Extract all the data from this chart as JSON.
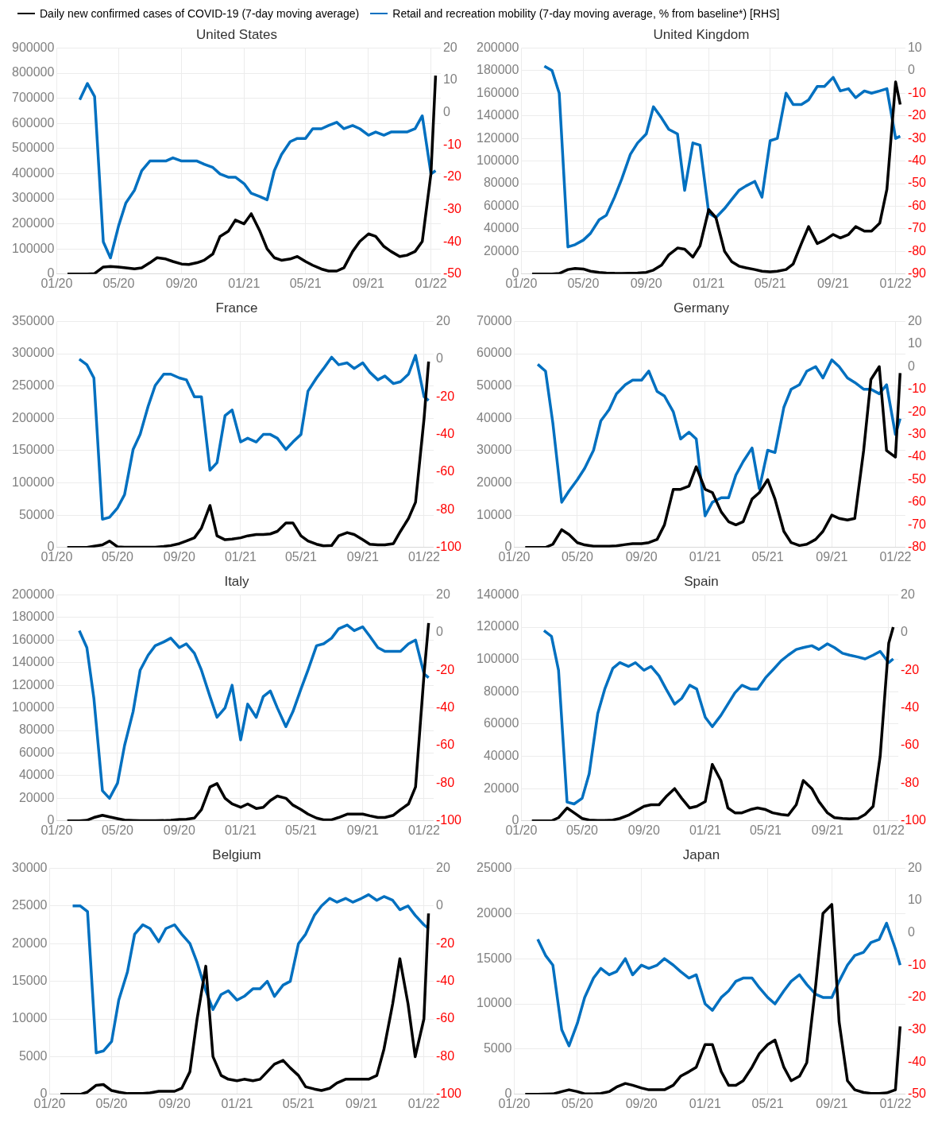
{
  "chart_data": [
    {
      "type": "line",
      "title": "United States",
      "legend": "top",
      "grid": true,
      "marker": "none",
      "x": [
        "2020-01-22",
        "2020-02-15",
        "2020-03-01",
        "2020-03-15",
        "2020-04-01",
        "2020-04-15",
        "2020-05-01",
        "2020-05-15",
        "2020-06-01",
        "2020-06-15",
        "2020-07-01",
        "2020-07-15",
        "2020-08-01",
        "2020-08-15",
        "2020-09-01",
        "2020-09-15",
        "2020-10-01",
        "2020-10-15",
        "2020-11-01",
        "2020-11-15",
        "2020-12-01",
        "2020-12-15",
        "2021-01-01",
        "2021-01-15",
        "2021-02-01",
        "2021-02-15",
        "2021-03-01",
        "2021-03-15",
        "2021-04-01",
        "2021-04-15",
        "2021-05-01",
        "2021-05-15",
        "2021-06-01",
        "2021-06-15",
        "2021-07-01",
        "2021-07-15",
        "2021-08-01",
        "2021-08-15",
        "2021-09-01",
        "2021-09-15",
        "2021-10-01",
        "2021-10-15",
        "2021-11-01",
        "2021-11-15",
        "2021-12-01",
        "2021-12-15",
        "2022-01-01",
        "2022-01-10"
      ],
      "xlim": [
        "2020-01-01",
        "2022-01-20"
      ],
      "xticks": [
        {
          "value": "2020-01",
          "label": "01/20"
        },
        {
          "value": "2020-05",
          "label": "05/20"
        },
        {
          "value": "2020-09",
          "label": "09/20"
        },
        {
          "value": "2021-01",
          "label": "01/21"
        },
        {
          "value": "2021-05",
          "label": "05/21"
        },
        {
          "value": "2021-09",
          "label": "09/21"
        },
        {
          "value": "2022-01",
          "label": "01/22"
        }
      ],
      "ylim": [
        0,
        900000
      ],
      "yticks": [
        0,
        100000,
        200000,
        300000,
        400000,
        500000,
        600000,
        700000,
        800000,
        900000
      ],
      "y2lim": [
        -50,
        20
      ],
      "y2ticks": [
        -50,
        -40,
        -30,
        -20,
        -10,
        0,
        10,
        20
      ],
      "series": [
        {
          "name": "Daily new confirmed cases of COVID-19 (7-day moving average)",
          "color": "#000000",
          "values": [
            0,
            0,
            0,
            2000,
            28000,
            30000,
            28000,
            25000,
            21000,
            25000,
            45000,
            65000,
            60000,
            50000,
            40000,
            38000,
            45000,
            55000,
            80000,
            150000,
            170000,
            215000,
            200000,
            240000,
            170000,
            100000,
            65000,
            55000,
            60000,
            70000,
            50000,
            35000,
            20000,
            12000,
            12000,
            25000,
            90000,
            130000,
            160000,
            150000,
            110000,
            90000,
            70000,
            75000,
            90000,
            130000,
            400000,
            790000
          ]
        },
        {
          "name": "Retail and recreation mobility (7-day moving average, % from baseline*) [RHS]",
          "color": "#0070c0",
          "axis": "y2",
          "values": [
            null,
            4,
            9,
            5,
            -40,
            -45,
            -35,
            -28,
            -24,
            -18,
            -15,
            -15,
            -15,
            -14,
            -15,
            -15,
            -15,
            -16,
            -17,
            -19,
            -20,
            -20,
            -22,
            -25,
            -26,
            -27,
            -18,
            -13,
            -9,
            -8,
            -8,
            -5,
            -5,
            -4,
            -3,
            -5,
            -4,
            -5,
            -7,
            -6,
            -7,
            -6,
            -6,
            -6,
            -5,
            -1,
            -19,
            -18
          ]
        }
      ]
    },
    {
      "type": "line",
      "title": "United Kingdom",
      "grid": true,
      "marker": "none",
      "x": [
        "2020-01-22",
        "2020-02-15",
        "2020-03-01",
        "2020-03-15",
        "2020-04-01",
        "2020-04-15",
        "2020-05-01",
        "2020-05-15",
        "2020-06-01",
        "2020-06-15",
        "2020-07-01",
        "2020-07-15",
        "2020-08-01",
        "2020-08-15",
        "2020-09-01",
        "2020-09-15",
        "2020-10-01",
        "2020-10-15",
        "2020-11-01",
        "2020-11-15",
        "2020-12-01",
        "2020-12-15",
        "2021-01-01",
        "2021-01-15",
        "2021-02-01",
        "2021-02-15",
        "2021-03-01",
        "2021-03-15",
        "2021-04-01",
        "2021-04-15",
        "2021-05-01",
        "2021-05-15",
        "2021-06-01",
        "2021-06-15",
        "2021-07-01",
        "2021-07-15",
        "2021-08-01",
        "2021-08-15",
        "2021-09-01",
        "2021-09-15",
        "2021-10-01",
        "2021-10-15",
        "2021-11-01",
        "2021-11-15",
        "2021-12-01",
        "2021-12-15",
        "2022-01-01",
        "2022-01-10"
      ],
      "xlim": [
        "2020-01-01",
        "2022-01-20"
      ],
      "xticks": [
        {
          "value": "2020-01",
          "label": "01/20"
        },
        {
          "value": "2020-05",
          "label": "05/20"
        },
        {
          "value": "2020-09",
          "label": "09/20"
        },
        {
          "value": "2021-01",
          "label": "01/21"
        },
        {
          "value": "2021-05",
          "label": "05/21"
        },
        {
          "value": "2021-09",
          "label": "09/21"
        },
        {
          "value": "2022-01",
          "label": "01/22"
        }
      ],
      "ylim": [
        0,
        200000
      ],
      "yticks": [
        0,
        20000,
        40000,
        60000,
        80000,
        100000,
        120000,
        140000,
        160000,
        180000,
        200000
      ],
      "y2lim": [
        -90,
        10
      ],
      "y2ticks": [
        -90,
        -80,
        -70,
        -60,
        -50,
        -40,
        -30,
        -20,
        -10,
        0,
        10
      ],
      "series": [
        {
          "color": "#000000",
          "values": [
            0,
            0,
            0,
            500,
            4000,
            5000,
            4500,
            2500,
            1500,
            1000,
            700,
            600,
            800,
            1000,
            1500,
            3500,
            8000,
            17000,
            23000,
            22000,
            15000,
            25000,
            57000,
            50000,
            20000,
            11000,
            7000,
            5500,
            4000,
            2500,
            2000,
            2500,
            4000,
            9000,
            27000,
            42000,
            27000,
            30000,
            35000,
            32000,
            35000,
            42000,
            38000,
            38000,
            45000,
            75000,
            170000,
            150000
          ]
        },
        {
          "color": "#0070c0",
          "axis": "y2",
          "values": [
            null,
            2,
            0,
            -10,
            -78,
            -77,
            -75,
            -72,
            -66,
            -64,
            -56,
            -48,
            -37,
            -32,
            -28,
            -16,
            -21,
            -26,
            -28,
            -53,
            -32,
            -33,
            -63,
            -65,
            -61,
            -57,
            -53,
            -51,
            -49,
            -56,
            -31,
            -30,
            -10,
            -15,
            -15,
            -13,
            -7,
            -7,
            -3,
            -9,
            -8,
            -12,
            -9,
            -10,
            -9,
            -8,
            -30,
            -29
          ]
        }
      ]
    },
    {
      "type": "line",
      "title": "France",
      "grid": true,
      "marker": "none",
      "x": [
        "2020-01-22",
        "2020-02-15",
        "2020-03-01",
        "2020-03-15",
        "2020-04-01",
        "2020-04-15",
        "2020-05-01",
        "2020-05-15",
        "2020-06-01",
        "2020-06-15",
        "2020-07-01",
        "2020-07-15",
        "2020-08-01",
        "2020-08-15",
        "2020-09-01",
        "2020-09-15",
        "2020-10-01",
        "2020-10-15",
        "2020-11-01",
        "2020-11-15",
        "2020-12-01",
        "2020-12-15",
        "2021-01-01",
        "2021-01-15",
        "2021-02-01",
        "2021-02-15",
        "2021-03-01",
        "2021-03-15",
        "2021-04-01",
        "2021-04-15",
        "2021-05-01",
        "2021-05-15",
        "2021-06-01",
        "2021-06-15",
        "2021-07-01",
        "2021-07-15",
        "2021-08-01",
        "2021-08-15",
        "2021-09-01",
        "2021-09-15",
        "2021-10-01",
        "2021-10-15",
        "2021-11-01",
        "2021-11-15",
        "2021-12-01",
        "2021-12-15",
        "2022-01-01",
        "2022-01-10"
      ],
      "xlim": [
        "2020-01-01",
        "2022-01-20"
      ],
      "xticks": [
        {
          "value": "2020-01",
          "label": "01/20"
        },
        {
          "value": "2020-05",
          "label": "05/20"
        },
        {
          "value": "2020-09",
          "label": "09/20"
        },
        {
          "value": "2021-01",
          "label": "01/21"
        },
        {
          "value": "2021-05",
          "label": "05/21"
        },
        {
          "value": "2021-09",
          "label": "09/21"
        },
        {
          "value": "2022-01",
          "label": "01/22"
        }
      ],
      "ylim": [
        0,
        350000
      ],
      "yticks": [
        0,
        50000,
        100000,
        150000,
        200000,
        250000,
        300000,
        350000
      ],
      "y2lim": [
        -100,
        20
      ],
      "y2ticks": [
        -100,
        -80,
        -60,
        -40,
        -20,
        0,
        20
      ],
      "series": [
        {
          "color": "#000000",
          "values": [
            0,
            0,
            0,
            2000,
            4000,
            10000,
            1000,
            500,
            500,
            300,
            300,
            500,
            1500,
            3000,
            6000,
            10000,
            15000,
            30000,
            65000,
            18000,
            12000,
            13000,
            15000,
            18000,
            20000,
            20000,
            21000,
            25000,
            38000,
            38000,
            18000,
            10000,
            5000,
            2500,
            3000,
            18000,
            23000,
            20000,
            12000,
            5000,
            4000,
            4000,
            6000,
            25000,
            45000,
            70000,
            200000,
            288000
          ]
        },
        {
          "color": "#0070c0",
          "axis": "y2",
          "values": [
            null,
            0,
            -3,
            -10,
            -85,
            -84,
            -79,
            -72,
            -48,
            -40,
            -25,
            -14,
            -8,
            -8,
            -10,
            -11,
            -20,
            -20,
            -59,
            -55,
            -30,
            -27,
            -44,
            -42,
            -44,
            -40,
            -40,
            -42,
            -48,
            -44,
            -40,
            -17,
            -10,
            -5,
            1,
            -3,
            -2,
            -5,
            -2,
            -7,
            -11,
            -9,
            -13,
            -12,
            -8,
            2,
            -20,
            -22
          ]
        }
      ]
    },
    {
      "type": "line",
      "title": "Germany",
      "grid": true,
      "marker": "none",
      "x": [
        "2020-01-22",
        "2020-02-15",
        "2020-03-01",
        "2020-03-15",
        "2020-04-01",
        "2020-04-15",
        "2020-05-01",
        "2020-05-15",
        "2020-06-01",
        "2020-06-15",
        "2020-07-01",
        "2020-07-15",
        "2020-08-01",
        "2020-08-15",
        "2020-09-01",
        "2020-09-15",
        "2020-10-01",
        "2020-10-15",
        "2020-11-01",
        "2020-11-15",
        "2020-12-01",
        "2020-12-15",
        "2021-01-01",
        "2021-01-15",
        "2021-02-01",
        "2021-02-15",
        "2021-03-01",
        "2021-03-15",
        "2021-04-01",
        "2021-04-15",
        "2021-05-01",
        "2021-05-15",
        "2021-06-01",
        "2021-06-15",
        "2021-07-01",
        "2021-07-15",
        "2021-08-01",
        "2021-08-15",
        "2021-09-01",
        "2021-09-15",
        "2021-10-01",
        "2021-10-15",
        "2021-11-01",
        "2021-11-15",
        "2021-12-01",
        "2021-12-15",
        "2022-01-01",
        "2022-01-10"
      ],
      "xlim": [
        "2020-01-01",
        "2022-01-20"
      ],
      "xticks": [
        {
          "value": "2020-01",
          "label": "01/20"
        },
        {
          "value": "2020-05",
          "label": "05/20"
        },
        {
          "value": "2020-09",
          "label": "09/20"
        },
        {
          "value": "2021-01",
          "label": "01/21"
        },
        {
          "value": "2021-05",
          "label": "05/21"
        },
        {
          "value": "2021-09",
          "label": "09/21"
        },
        {
          "value": "2022-01",
          "label": "01/22"
        }
      ],
      "ylim": [
        0,
        70000
      ],
      "yticks": [
        0,
        10000,
        20000,
        30000,
        40000,
        50000,
        60000,
        70000
      ],
      "y2lim": [
        -80,
        20
      ],
      "y2ticks": [
        -80,
        -70,
        -60,
        -50,
        -40,
        -30,
        -20,
        -10,
        0,
        10,
        20
      ],
      "series": [
        {
          "color": "#000000",
          "values": [
            0,
            0,
            0,
            1000,
            5500,
            4000,
            1500,
            800,
            400,
            400,
            400,
            500,
            900,
            1200,
            1200,
            1500,
            2500,
            7000,
            18000,
            18000,
            19000,
            25000,
            18000,
            17000,
            11000,
            8000,
            7000,
            8000,
            15000,
            17000,
            21000,
            15000,
            5000,
            1500,
            600,
            1000,
            2500,
            5000,
            10000,
            9000,
            8500,
            9000,
            30000,
            52000,
            56000,
            30000,
            28000,
            54000
          ]
        },
        {
          "color": "#0070c0",
          "axis": "y2",
          "values": [
            null,
            1,
            -2,
            -25,
            -60,
            -55,
            -50,
            -45,
            -37,
            -24,
            -19,
            -12,
            -8,
            -6,
            -6,
            -2,
            -11,
            -13,
            -20,
            -32,
            -29,
            -32,
            -66,
            -60,
            -58,
            -58,
            -48,
            -42,
            -36,
            -54,
            -37,
            -38,
            -18,
            -10,
            -8,
            -2,
            0,
            -5,
            3,
            0,
            -5,
            -7,
            -10,
            -10,
            -12,
            -8,
            -30,
            -23
          ]
        }
      ]
    },
    {
      "type": "line",
      "title": "Italy",
      "grid": true,
      "marker": "none",
      "x": [
        "2020-01-22",
        "2020-02-15",
        "2020-03-01",
        "2020-03-15",
        "2020-04-01",
        "2020-04-15",
        "2020-05-01",
        "2020-05-15",
        "2020-06-01",
        "2020-06-15",
        "2020-07-01",
        "2020-07-15",
        "2020-08-01",
        "2020-08-15",
        "2020-09-01",
        "2020-09-15",
        "2020-10-01",
        "2020-10-15",
        "2020-11-01",
        "2020-11-15",
        "2020-12-01",
        "2020-12-15",
        "2021-01-01",
        "2021-01-15",
        "2021-02-01",
        "2021-02-15",
        "2021-03-01",
        "2021-03-15",
        "2021-04-01",
        "2021-04-15",
        "2021-05-01",
        "2021-05-15",
        "2021-06-01",
        "2021-06-15",
        "2021-07-01",
        "2021-07-15",
        "2021-08-01",
        "2021-08-15",
        "2021-09-01",
        "2021-09-15",
        "2021-10-01",
        "2021-10-15",
        "2021-11-01",
        "2021-11-15",
        "2021-12-01",
        "2021-12-15",
        "2022-01-01",
        "2022-01-10"
      ],
      "xlim": [
        "2020-01-01",
        "2022-01-20"
      ],
      "xticks": [
        {
          "value": "2020-01",
          "label": "01/20"
        },
        {
          "value": "2020-05",
          "label": "05/20"
        },
        {
          "value": "2020-09",
          "label": "09/20"
        },
        {
          "value": "2021-01",
          "label": "01/21"
        },
        {
          "value": "2021-05",
          "label": "05/21"
        },
        {
          "value": "2021-09",
          "label": "09/21"
        },
        {
          "value": "2022-01",
          "label": "01/22"
        }
      ],
      "ylim": [
        0,
        200000
      ],
      "yticks": [
        0,
        20000,
        40000,
        60000,
        80000,
        100000,
        120000,
        140000,
        160000,
        180000,
        200000
      ],
      "y2lim": [
        -100,
        20
      ],
      "y2ticks": [
        -100,
        -80,
        -60,
        -40,
        -20,
        0,
        20
      ],
      "series": [
        {
          "color": "#000000",
          "values": [
            0,
            0,
            500,
            3000,
            5000,
            3500,
            2000,
            800,
            400,
            200,
            200,
            200,
            300,
            600,
            1200,
            1500,
            2500,
            10000,
            30000,
            33000,
            20000,
            15000,
            12000,
            15000,
            11000,
            12000,
            18000,
            22000,
            20000,
            14000,
            10000,
            6000,
            2500,
            1000,
            1000,
            3000,
            6000,
            6000,
            6000,
            4500,
            3000,
            3000,
            5000,
            10000,
            15000,
            30000,
            130000,
            175000
          ]
        },
        {
          "color": "#0070c0",
          "axis": "y2",
          "values": [
            null,
            1,
            -8,
            -35,
            -84,
            -88,
            -80,
            -60,
            -42,
            -20,
            -12,
            -7,
            -5,
            -3,
            -8,
            -6,
            -11,
            -20,
            -34,
            -45,
            -40,
            -28,
            -57,
            -38,
            -45,
            -34,
            -31,
            -40,
            -50,
            -42,
            -30,
            -20,
            -7,
            -6,
            -3,
            2,
            4,
            1,
            3,
            -2,
            -8,
            -10,
            -10,
            -10,
            -6,
            -4,
            -22,
            -24
          ]
        }
      ]
    },
    {
      "type": "line",
      "title": "Spain",
      "grid": true,
      "marker": "none",
      "x": [
        "2020-01-22",
        "2020-02-15",
        "2020-03-01",
        "2020-03-15",
        "2020-04-01",
        "2020-04-15",
        "2020-05-01",
        "2020-05-15",
        "2020-06-01",
        "2020-06-15",
        "2020-07-01",
        "2020-07-15",
        "2020-08-01",
        "2020-08-15",
        "2020-09-01",
        "2020-09-15",
        "2020-10-01",
        "2020-10-15",
        "2020-11-01",
        "2020-11-15",
        "2020-12-01",
        "2020-12-15",
        "2021-01-01",
        "2021-01-15",
        "2021-02-01",
        "2021-02-15",
        "2021-03-01",
        "2021-03-15",
        "2021-04-01",
        "2021-04-15",
        "2021-05-01",
        "2021-05-15",
        "2021-06-01",
        "2021-06-15",
        "2021-07-01",
        "2021-07-15",
        "2021-08-01",
        "2021-08-15",
        "2021-09-01",
        "2021-09-15",
        "2021-10-01",
        "2021-10-15",
        "2021-11-01",
        "2021-11-15",
        "2021-12-01",
        "2021-12-15",
        "2022-01-01",
        "2022-01-10"
      ],
      "xlim": [
        "2020-01-01",
        "2022-01-20"
      ],
      "xticks": [
        {
          "value": "2020-01",
          "label": "01/20"
        },
        {
          "value": "2020-05",
          "label": "05/20"
        },
        {
          "value": "2020-09",
          "label": "09/20"
        },
        {
          "value": "2021-01",
          "label": "01/21"
        },
        {
          "value": "2021-05",
          "label": "05/21"
        },
        {
          "value": "2021-09",
          "label": "09/21"
        },
        {
          "value": "2022-01",
          "label": "01/22"
        }
      ],
      "ylim": [
        0,
        140000
      ],
      "yticks": [
        0,
        20000,
        40000,
        60000,
        80000,
        100000,
        120000,
        140000
      ],
      "y2lim": [
        -100,
        20
      ],
      "y2ticks": [
        -100,
        -80,
        -60,
        -40,
        -20,
        0,
        20
      ],
      "series": [
        {
          "color": "#000000",
          "values": [
            0,
            0,
            0,
            2000,
            8000,
            5000,
            1500,
            500,
            300,
            300,
            500,
            1500,
            3500,
            6000,
            9000,
            10000,
            10000,
            15000,
            20000,
            14000,
            8000,
            9000,
            12000,
            35000,
            25000,
            8000,
            5000,
            5000,
            7000,
            8000,
            7000,
            5000,
            4000,
            3500,
            10000,
            25000,
            20000,
            12000,
            5000,
            2000,
            1500,
            1200,
            1500,
            4000,
            9000,
            40000,
            110000,
            120000
          ]
        },
        {
          "color": "#0070c0",
          "axis": "y2",
          "values": [
            null,
            1,
            -2,
            -20,
            -90,
            -91,
            -88,
            -75,
            -43,
            -30,
            -19,
            -16,
            -18,
            -16,
            -20,
            -18,
            -23,
            -30,
            -38,
            -35,
            -28,
            -30,
            -45,
            -50,
            -44,
            -38,
            -32,
            -28,
            -30,
            -30,
            -24,
            -20,
            -15,
            -12,
            -9,
            -8,
            -7,
            -9,
            -6,
            -8,
            -11,
            -12,
            -13,
            -14,
            -12,
            -10,
            -16,
            -14
          ]
        }
      ]
    },
    {
      "type": "line",
      "title": "Belgium",
      "grid": true,
      "marker": "none",
      "x": [
        "2020-01-22",
        "2020-02-15",
        "2020-03-01",
        "2020-03-15",
        "2020-04-01",
        "2020-04-15",
        "2020-05-01",
        "2020-05-15",
        "2020-06-01",
        "2020-06-15",
        "2020-07-01",
        "2020-07-15",
        "2020-08-01",
        "2020-08-15",
        "2020-09-01",
        "2020-09-15",
        "2020-10-01",
        "2020-10-15",
        "2020-11-01",
        "2020-11-15",
        "2020-12-01",
        "2020-12-15",
        "2021-01-01",
        "2021-01-15",
        "2021-02-01",
        "2021-02-15",
        "2021-03-01",
        "2021-03-15",
        "2021-04-01",
        "2021-04-15",
        "2021-05-01",
        "2021-05-15",
        "2021-06-01",
        "2021-06-15",
        "2021-07-01",
        "2021-07-15",
        "2021-08-01",
        "2021-08-15",
        "2021-09-01",
        "2021-09-15",
        "2021-10-01",
        "2021-10-15",
        "2021-11-01",
        "2021-11-15",
        "2021-12-01",
        "2021-12-15",
        "2022-01-01",
        "2022-01-10"
      ],
      "xlim": [
        "2020-01-01",
        "2022-01-20"
      ],
      "xticks": [
        {
          "value": "2020-01",
          "label": "01/20"
        },
        {
          "value": "2020-05",
          "label": "05/20"
        },
        {
          "value": "2020-09",
          "label": "09/20"
        },
        {
          "value": "2021-01",
          "label": "01/21"
        },
        {
          "value": "2021-05",
          "label": "05/21"
        },
        {
          "value": "2021-09",
          "label": "09/21"
        },
        {
          "value": "2022-01",
          "label": "01/22"
        }
      ],
      "ylim": [
        0,
        30000
      ],
      "yticks": [
        0,
        5000,
        10000,
        15000,
        20000,
        25000,
        30000
      ],
      "y2lim": [
        -100,
        20
      ],
      "y2ticks": [
        -100,
        -80,
        -60,
        -40,
        -20,
        0,
        20
      ],
      "series": [
        {
          "color": "#000000",
          "values": [
            0,
            0,
            0,
            300,
            1200,
            1300,
            500,
            300,
            100,
            100,
            100,
            200,
            400,
            400,
            400,
            800,
            3000,
            10000,
            17000,
            5000,
            2500,
            2000,
            1800,
            2000,
            1800,
            2000,
            3000,
            4000,
            4500,
            3500,
            2500,
            1000,
            700,
            500,
            800,
            1500,
            2000,
            2000,
            2000,
            2000,
            2500,
            6000,
            12000,
            18000,
            12000,
            5000,
            10000,
            24000
          ]
        },
        {
          "color": "#0070c0",
          "axis": "y2",
          "values": [
            null,
            0,
            0,
            -3,
            -78,
            -77,
            -72,
            -50,
            -35,
            -15,
            -10,
            -12,
            -19,
            -12,
            -10,
            -15,
            -20,
            -30,
            -45,
            -55,
            -47,
            -45,
            -50,
            -48,
            -44,
            -44,
            -40,
            -48,
            -42,
            -40,
            -20,
            -15,
            -5,
            0,
            4,
            2,
            4,
            2,
            4,
            6,
            3,
            5,
            3,
            -2,
            0,
            -5,
            -10,
            -12
          ]
        }
      ]
    },
    {
      "type": "line",
      "title": "Japan",
      "grid": true,
      "marker": "none",
      "x": [
        "2020-01-22",
        "2020-02-15",
        "2020-03-01",
        "2020-03-15",
        "2020-04-01",
        "2020-04-15",
        "2020-05-01",
        "2020-05-15",
        "2020-06-01",
        "2020-06-15",
        "2020-07-01",
        "2020-07-15",
        "2020-08-01",
        "2020-08-15",
        "2020-09-01",
        "2020-09-15",
        "2020-10-01",
        "2020-10-15",
        "2020-11-01",
        "2020-11-15",
        "2020-12-01",
        "2020-12-15",
        "2021-01-01",
        "2021-01-15",
        "2021-02-01",
        "2021-02-15",
        "2021-03-01",
        "2021-03-15",
        "2021-04-01",
        "2021-04-15",
        "2021-05-01",
        "2021-05-15",
        "2021-06-01",
        "2021-06-15",
        "2021-07-01",
        "2021-07-15",
        "2021-08-01",
        "2021-08-15",
        "2021-09-01",
        "2021-09-15",
        "2021-10-01",
        "2021-10-15",
        "2021-11-01",
        "2021-11-15",
        "2021-12-01",
        "2021-12-15",
        "2022-01-01",
        "2022-01-10"
      ],
      "xlim": [
        "2020-01-01",
        "2022-01-20"
      ],
      "xticks": [
        {
          "value": "2020-01",
          "label": "01/20"
        },
        {
          "value": "2020-05",
          "label": "05/20"
        },
        {
          "value": "2020-09",
          "label": "09/20"
        },
        {
          "value": "2021-01",
          "label": "01/21"
        },
        {
          "value": "2021-05",
          "label": "05/21"
        },
        {
          "value": "2021-09",
          "label": "09/21"
        },
        {
          "value": "2022-01",
          "label": "01/22"
        }
      ],
      "ylim": [
        0,
        25000
      ],
      "yticks": [
        0,
        5000,
        10000,
        15000,
        20000,
        25000
      ],
      "y2lim": [
        -50,
        20
      ],
      "y2ticks": [
        -50,
        -40,
        -30,
        -20,
        -10,
        0,
        10,
        20
      ],
      "series": [
        {
          "color": "#000000",
          "values": [
            0,
            10,
            20,
            40,
            300,
            500,
            300,
            50,
            50,
            100,
            300,
            800,
            1200,
            1000,
            700,
            500,
            500,
            500,
            1000,
            2000,
            2500,
            3000,
            5500,
            5500,
            2500,
            1000,
            1000,
            1500,
            3000,
            4500,
            5500,
            6000,
            3000,
            1500,
            2000,
            3500,
            12000,
            20000,
            21000,
            8000,
            1500,
            500,
            200,
            100,
            100,
            150,
            500,
            7500
          ]
        },
        {
          "color": "#0070c0",
          "axis": "y2",
          "values": [
            null,
            -2,
            -7,
            -10,
            -30,
            -35,
            -28,
            -20,
            -14,
            -11,
            -13,
            -12,
            -8,
            -13,
            -10,
            -11,
            -10,
            -8,
            -10,
            -12,
            -14,
            -13,
            -22,
            -24,
            -20,
            -18,
            -15,
            -14,
            -14,
            -17,
            -20,
            -22,
            -18,
            -15,
            -13,
            -16,
            -19,
            -20,
            -20,
            -15,
            -10,
            -7,
            -6,
            -3,
            -2,
            3,
            -5,
            -10
          ]
        }
      ]
    }
  ]
}
